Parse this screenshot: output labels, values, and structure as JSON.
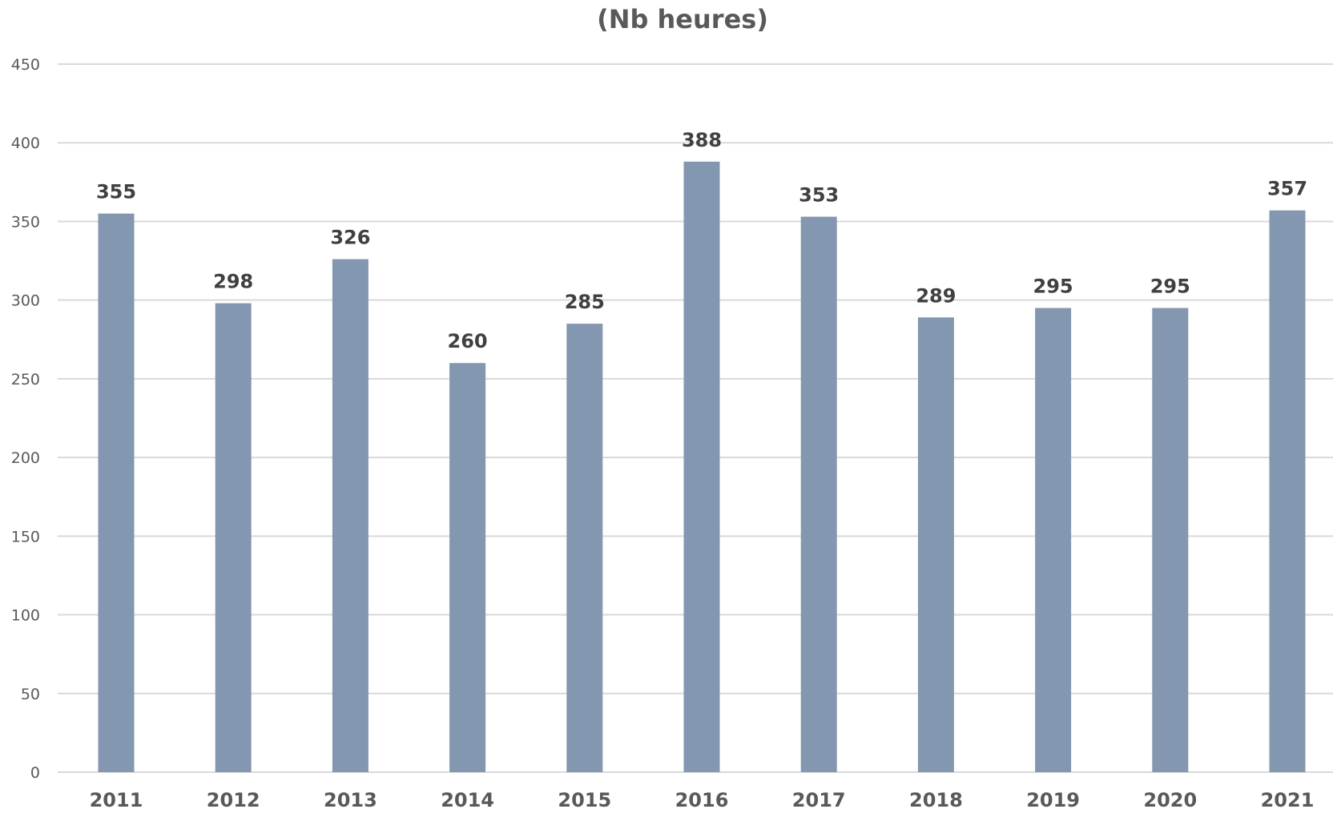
{
  "chart_data": {
    "type": "bar",
    "title": "(Nb heures)",
    "xlabel": "",
    "ylabel": "",
    "categories": [
      "2011",
      "2012",
      "2013",
      "2014",
      "2015",
      "2016",
      "2017",
      "2018",
      "2019",
      "2020",
      "2021"
    ],
    "values": [
      355,
      298,
      326,
      260,
      285,
      388,
      353,
      289,
      295,
      295,
      357
    ],
    "data_labels": [
      "355",
      "298",
      "326",
      "260",
      "285",
      "388",
      "353",
      "289",
      "295",
      "295",
      "357"
    ],
    "ylim": [
      0,
      450
    ],
    "yticks": [
      0,
      50,
      100,
      150,
      200,
      250,
      300,
      350,
      400,
      450
    ],
    "ytick_labels": [
      "0",
      "50",
      "100",
      "150",
      "200",
      "250",
      "300",
      "350",
      "400",
      "450"
    ],
    "grid": true,
    "legend": "none",
    "bar_color": "#8497b0",
    "grid_color": "#d9d9d9"
  }
}
